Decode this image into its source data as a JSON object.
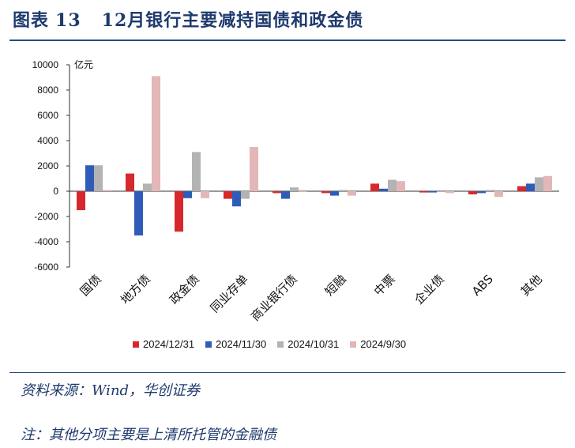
{
  "header": {
    "label": "图表",
    "number": "13",
    "title": "12月银行主要减持国债和政金债"
  },
  "footer": {
    "source": "资料来源：Wind，华创证券",
    "note": "注：其他分项主要是上清所托管的金融债"
  },
  "colors": {
    "s2024_12_31": "#d7282e",
    "s2024_11_30": "#2f5cb8",
    "s2024_10_31": "#b3b3b3",
    "s2024_9_30": "#e3b6b8",
    "title": "#1f3a6d"
  },
  "chart_data": {
    "type": "bar",
    "title": "12月银行主要减持国债和政金债",
    "unit_label": "亿元",
    "ylim": [
      -6000,
      10000
    ],
    "yticks": [
      10000,
      8000,
      6000,
      4000,
      2000,
      0,
      -2000,
      -4000,
      -6000
    ],
    "categories": [
      "国债",
      "地方债",
      "政金债",
      "同业存单",
      "商业银行债",
      "短融",
      "中票",
      "企业债",
      "ABS",
      "其他"
    ],
    "series": [
      {
        "name": "2024/12/31",
        "values": [
          -1500,
          1400,
          -3200,
          -600,
          -150,
          -150,
          600,
          -100,
          -250,
          400
        ]
      },
      {
        "name": "2024/11/30",
        "values": [
          2050,
          -3500,
          -550,
          -1200,
          -600,
          -350,
          200,
          -100,
          -150,
          600
        ]
      },
      {
        "name": "2024/10/31",
        "values": [
          2050,
          600,
          3100,
          -600,
          300,
          100,
          900,
          -50,
          100,
          1100
        ]
      },
      {
        "name": "2024/9/30",
        "values": [
          100,
          9100,
          -550,
          3500,
          -50,
          -350,
          800,
          -150,
          -450,
          1200
        ]
      }
    ]
  }
}
